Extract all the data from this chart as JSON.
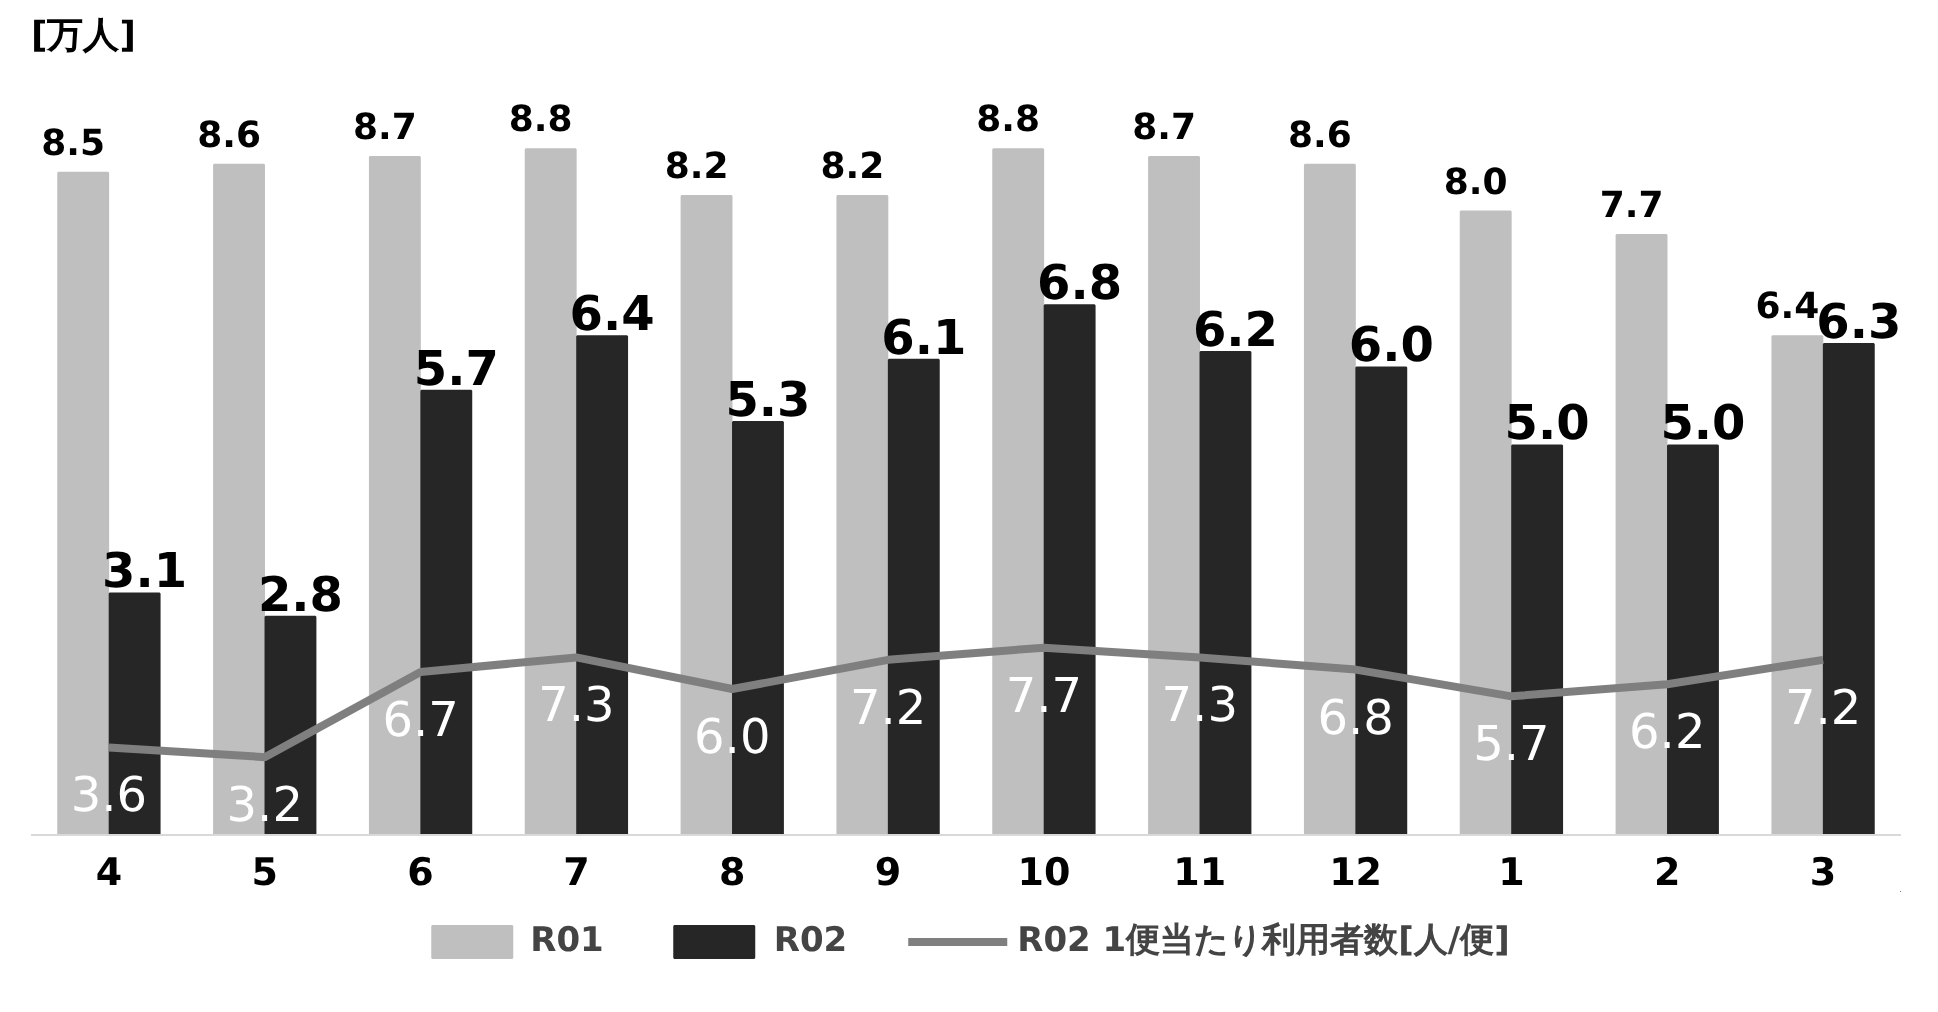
{
  "chart_data": {
    "type": "bar",
    "ylabel": "[万人]",
    "categories": [
      "4",
      "5",
      "6",
      "7",
      "8",
      "9",
      "10",
      "11",
      "12",
      "1",
      "2",
      "3"
    ],
    "series": [
      {
        "name": "R01",
        "color": "#bfbfbf",
        "values": [
          8.5,
          8.6,
          8.7,
          8.8,
          8.2,
          8.2,
          8.8,
          8.7,
          8.6,
          8.0,
          7.7,
          6.4
        ],
        "value_labels": [
          "8.5",
          "8.6",
          "8.7",
          "8.8",
          "8.2",
          "8.2",
          "8.8",
          "8.7",
          "8.6",
          "8.0",
          "7.7",
          "6.4"
        ]
      },
      {
        "name": "R02",
        "color": "#262626",
        "values": [
          3.1,
          2.8,
          5.7,
          6.4,
          5.3,
          6.1,
          6.8,
          6.2,
          6.0,
          5.0,
          5.0,
          6.3
        ],
        "value_labels": [
          "3.1",
          "2.8",
          "5.7",
          "6.4",
          "5.3",
          "6.1",
          "6.8",
          "6.2",
          "6.0",
          "5.0",
          "5.0",
          "6.3"
        ]
      },
      {
        "name": "R02 1便当たり利用者数[人/便]",
        "color": "#7f7f7f",
        "type": "line",
        "axis": "y2",
        "values": [
          3.6,
          3.2,
          6.7,
          7.3,
          6.0,
          7.2,
          7.7,
          7.3,
          6.8,
          5.7,
          6.2,
          7.2
        ],
        "value_labels": [
          "3.6",
          "3.2",
          "6.7",
          "7.3",
          "6.0",
          "7.2",
          "7.7",
          "7.3",
          "6.8",
          "5.7",
          "6.2",
          "7.2"
        ]
      }
    ],
    "tick_labels": "x",
    "legend": "bottom",
    "line_style": "solid"
  }
}
